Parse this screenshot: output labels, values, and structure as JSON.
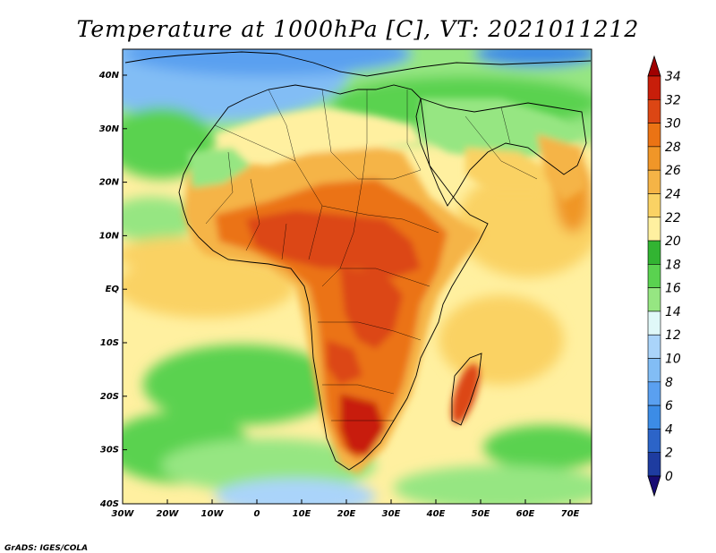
{
  "title": "Temperature at 1000hPa [C], VT: 2021011212",
  "credit": "GrADS: IGES/COLA",
  "lon_ticks": [
    "30W",
    "20W",
    "10W",
    "0",
    "10E",
    "20E",
    "30E",
    "40E",
    "50E",
    "60E",
    "70E"
  ],
  "lat_ticks": [
    "40N",
    "30N",
    "20N",
    "10N",
    "EQ",
    "10S",
    "20S",
    "30S",
    "40S"
  ],
  "colorbar": {
    "labels": [
      "34",
      "32",
      "30",
      "28",
      "26",
      "24",
      "22",
      "20",
      "18",
      "16",
      "14",
      "12",
      "10",
      "8",
      "6",
      "4",
      "2",
      "0"
    ],
    "colors": [
      "#180c73",
      "#1e3ca0",
      "#2c64c8",
      "#3c8ce6",
      "#5aa0f0",
      "#82bdf5",
      "#aad4fa",
      "#e0f8f8",
      "#96e682",
      "#5ad250",
      "#32b432",
      "#fff0a0",
      "#fad264",
      "#f5b446",
      "#f09628",
      "#eb7314",
      "#dc4614",
      "#c81e0a",
      "#a00000"
    ]
  }
}
